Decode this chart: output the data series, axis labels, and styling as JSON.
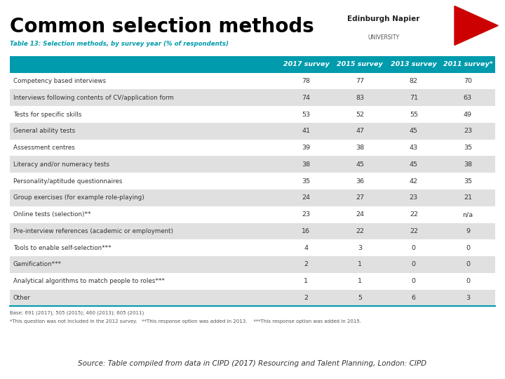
{
  "title": "Common selection methods",
  "table_title": "Table 13: Selection methods, by survey year (% of respondents)",
  "headers": [
    "",
    "2017 survey",
    "2015 survey",
    "2013 survey",
    "2011 survey*"
  ],
  "rows": [
    [
      "Competency based interviews",
      "78",
      "77",
      "82",
      "70"
    ],
    [
      "Interviews following contents of CV/application form",
      "74",
      "83",
      "71",
      "63"
    ],
    [
      "Tests for specific skills",
      "53",
      "52",
      "55",
      "49"
    ],
    [
      "General ability tests",
      "41",
      "47",
      "45",
      "23"
    ],
    [
      "Assessment centres",
      "39",
      "38",
      "43",
      "35"
    ],
    [
      "Literacy and/or numeracy tests",
      "38",
      "45",
      "45",
      "38"
    ],
    [
      "Personality/aptitude questionnaires",
      "35",
      "36",
      "42",
      "35"
    ],
    [
      "Group exercises (for example role-playing)",
      "24",
      "27",
      "23",
      "21"
    ],
    [
      "Online tests (selection)**",
      "23",
      "24",
      "22",
      "n/a"
    ],
    [
      "Pre-interview references (academic or employment)",
      "16",
      "22",
      "22",
      "9"
    ],
    [
      "Tools to enable self-selection***",
      "4",
      "3",
      "0",
      "0"
    ],
    [
      "Gamification***",
      "2",
      "1",
      "0",
      "0"
    ],
    [
      "Analytical algorithms to match people to roles***",
      "1",
      "1",
      "0",
      "0"
    ],
    [
      "Other",
      "2",
      "5",
      "6",
      "3"
    ]
  ],
  "footnotes": [
    "Base: 691 (2017); 505 (2015); 460 (2013); 605 (2011)",
    "*This question was not included in the 2012 survey.   **This response option was added in 2013.    ***This response option was added in 2015."
  ],
  "source": "Source: Table compiled from data in CIPD (2017) Resourcing and Talent Planning, London: CIPD",
  "header_bg": "#009BAD",
  "odd_row_bg": "#FFFFFF",
  "even_row_bg": "#E0E0E0",
  "header_text_color": "#FFFFFF",
  "row_text_color": "#333333",
  "title_color": "#000000",
  "table_title_color": "#009BAD",
  "source_color": "#333333",
  "bg_color": "#FFFFFF",
  "logo_text1": "Edinburgh Napier",
  "logo_text2": "UNIVERSITY",
  "logo_triangle_color": "#CC0000"
}
